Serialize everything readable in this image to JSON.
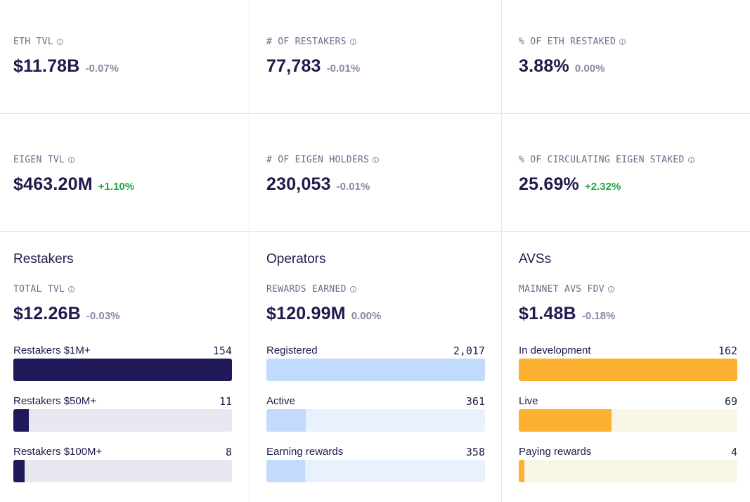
{
  "stats": [
    {
      "label": "ETH TVL",
      "value": "$11.78B",
      "change": "-0.07%",
      "trend": "neg"
    },
    {
      "label": "# OF RESTAKERS",
      "value": "77,783",
      "change": "-0.01%",
      "trend": "neg"
    },
    {
      "label": "% OF ETH RESTAKED",
      "value": "3.88%",
      "change": "0.00%",
      "trend": "neg"
    },
    {
      "label": "EIGEN TVL",
      "value": "$463.20M",
      "change": "+1.10%",
      "trend": "pos"
    },
    {
      "label": "# OF EIGEN HOLDERS",
      "value": "230,053",
      "change": "-0.01%",
      "trend": "neg"
    },
    {
      "label": "% OF CIRCULATING EIGEN STAKED",
      "value": "25.69%",
      "change": "+2.32%",
      "trend": "pos"
    }
  ],
  "panels": [
    {
      "title": "Restakers",
      "metric_label": "TOTAL TVL",
      "metric_value": "$12.26B",
      "metric_change": "-0.03%",
      "fill_color": "#1f1859",
      "track_color": "#e8e7f0",
      "bars": [
        {
          "label": "Restakers $1M+",
          "count": "154",
          "fraction": 1.0
        },
        {
          "label": "Restakers $50M+",
          "count": "11",
          "fraction": 0.0714
        },
        {
          "label": "Restakers $100M+",
          "count": "8",
          "fraction": 0.0519
        }
      ]
    },
    {
      "title": "Operators",
      "metric_label": "REWARDS EARNED",
      "metric_value": "$120.99M",
      "metric_change": "0.00%",
      "fill_color": "#c2dafd",
      "track_color": "#eaf1fe",
      "bars": [
        {
          "label": "Registered",
          "count": "2,017",
          "fraction": 1.0
        },
        {
          "label": "Active",
          "count": "361",
          "fraction": 0.179
        },
        {
          "label": "Earning rewards",
          "count": "358",
          "fraction": 0.1775
        }
      ]
    },
    {
      "title": "AVSs",
      "metric_label": "MAINNET AVS FDV",
      "metric_value": "$1.48B",
      "metric_change": "-0.18%",
      "fill_color": "#fdb130",
      "track_color": "#f9f6e6",
      "bars": [
        {
          "label": "In development",
          "count": "162",
          "fraction": 1.0
        },
        {
          "label": "Live",
          "count": "69",
          "fraction": 0.426
        },
        {
          "label": "Paying rewards",
          "count": "4",
          "fraction": 0.0247
        }
      ]
    }
  ]
}
